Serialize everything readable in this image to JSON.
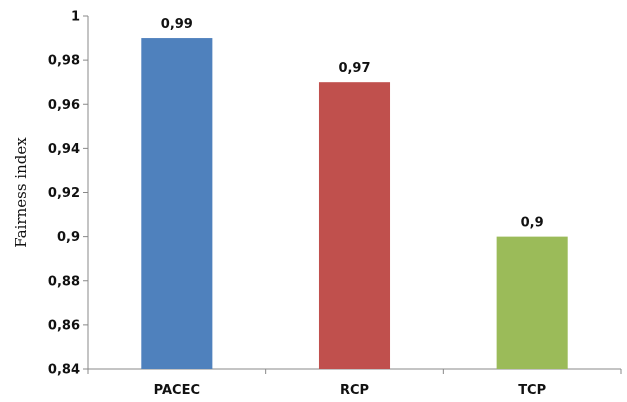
{
  "chart_data": {
    "type": "bar",
    "title": "",
    "xlabel": "",
    "ylabel": "Fairness index",
    "categories": [
      "PACEC",
      "RCP",
      "TCP"
    ],
    "values": [
      0.99,
      0.97,
      0.9
    ],
    "value_labels": [
      "0,99",
      "0,97",
      "0,9"
    ],
    "bar_colors": [
      "#4f81bd",
      "#c0504d",
      "#9bbb59"
    ],
    "ylim": [
      0.84,
      1.0
    ],
    "yticks": [
      0.84,
      0.86,
      0.88,
      0.9,
      0.92,
      0.94,
      0.96,
      0.98,
      1.0
    ],
    "ytick_labels": [
      "0,84",
      "0,86",
      "0,88",
      "0,9",
      "0,92",
      "0,94",
      "0,96",
      "0,98",
      "1"
    ],
    "grid": false,
    "legend": "none"
  }
}
